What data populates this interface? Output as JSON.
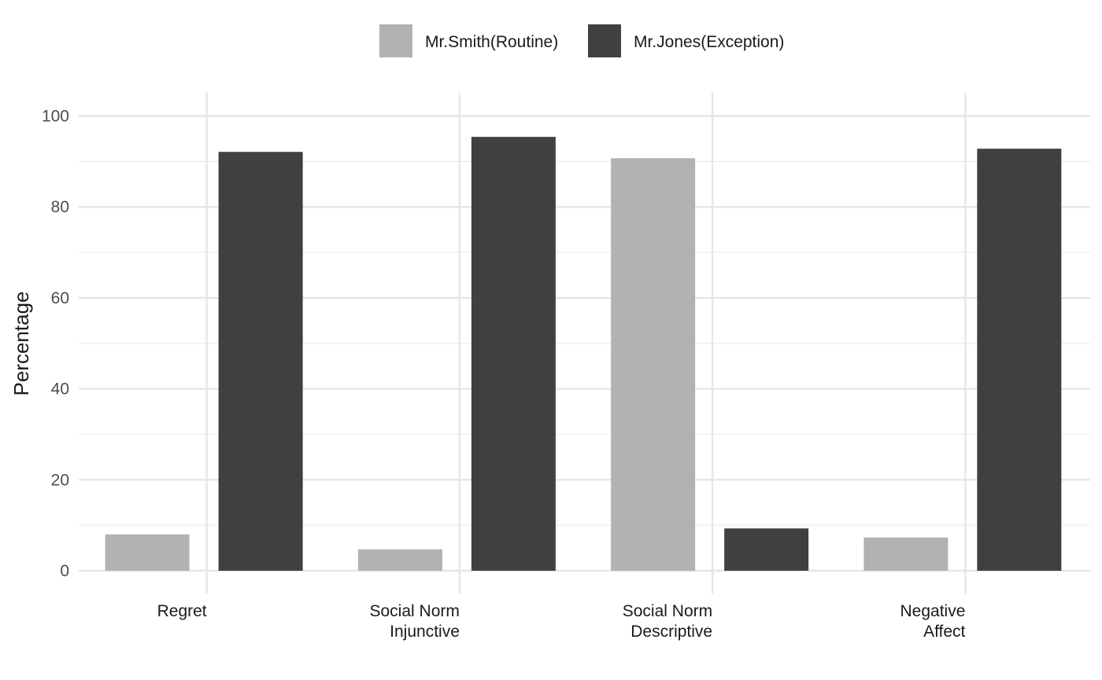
{
  "chart_data": {
    "type": "bar",
    "categories": [
      [
        "Regret"
      ],
      [
        "Social Norm",
        "Injunctive"
      ],
      [
        "Social Norm",
        "Descriptive"
      ],
      [
        "Negative",
        "Affect"
      ]
    ],
    "series": [
      {
        "name": "Mr.Smith(Routine)",
        "color": "#b2b2b2",
        "values": [
          8,
          4.7,
          90.7,
          7.3
        ]
      },
      {
        "name": "Mr.Jones(Exception)",
        "color": "#404040",
        "values": [
          92.1,
          95.4,
          9.3,
          92.8
        ]
      }
    ],
    "xlabel": "",
    "ylabel": "Percentage",
    "ylim": [
      0,
      105
    ],
    "yticks": [
      0,
      20,
      40,
      60,
      80,
      100
    ],
    "grid": true,
    "legend_position": "top"
  }
}
